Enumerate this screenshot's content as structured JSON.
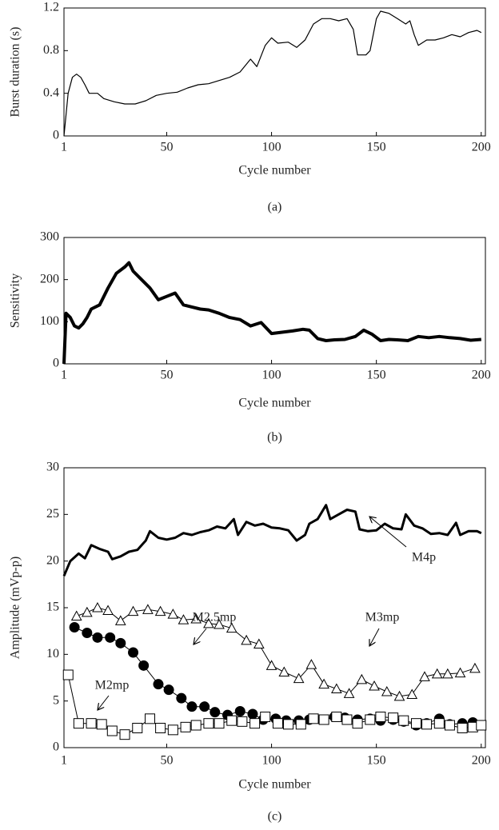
{
  "chart_data": [
    {
      "type": "line",
      "caption": "(a)",
      "xlabel": "Cycle number",
      "ylabel": "Burst duration (s)",
      "xlim": [
        1,
        202
      ],
      "ylim": [
        0,
        1.2
      ],
      "xticks": [
        1,
        50,
        100,
        150,
        200
      ],
      "yticks": [
        0,
        0.4,
        0.8,
        1.2
      ],
      "series": [
        {
          "color": "#000000",
          "line_width": 1.2,
          "marker": "none",
          "x": [
            1,
            3,
            5,
            7,
            9,
            11,
            13,
            17,
            20,
            25,
            30,
            35,
            40,
            45,
            50,
            55,
            60,
            65,
            70,
            75,
            80,
            85,
            90,
            93,
            97,
            100,
            103,
            108,
            112,
            116,
            120,
            124,
            128,
            132,
            136,
            139,
            141,
            145,
            147,
            150,
            152,
            156,
            160,
            164,
            166,
            168,
            170,
            174,
            178,
            182,
            186,
            190,
            194,
            198,
            200
          ],
          "values": [
            0,
            0.4,
            0.55,
            0.58,
            0.55,
            0.48,
            0.4,
            0.4,
            0.35,
            0.32,
            0.3,
            0.3,
            0.33,
            0.38,
            0.4,
            0.41,
            0.45,
            0.48,
            0.49,
            0.52,
            0.55,
            0.6,
            0.72,
            0.65,
            0.85,
            0.92,
            0.87,
            0.88,
            0.83,
            0.9,
            1.05,
            1.1,
            1.1,
            1.08,
            1.1,
            1.0,
            0.76,
            0.76,
            0.8,
            1.1,
            1.17,
            1.15,
            1.1,
            1.05,
            1.08,
            0.95,
            0.85,
            0.9,
            0.9,
            0.92,
            0.95,
            0.93,
            0.97,
            0.99,
            0.97
          ]
        }
      ]
    },
    {
      "type": "line",
      "caption": "(b)",
      "xlabel": "Cycle number",
      "ylabel": "Sensitivity",
      "xlim": [
        1,
        202
      ],
      "ylim": [
        0,
        300
      ],
      "xticks": [
        1,
        50,
        100,
        150,
        200
      ],
      "yticks": [
        0,
        100,
        200,
        300
      ],
      "series": [
        {
          "color": "#000000",
          "line_width": 4,
          "marker": "none",
          "x": [
            1,
            2,
            4,
            6,
            8,
            10,
            12,
            14,
            18,
            22,
            26,
            30,
            32,
            34,
            38,
            42,
            46,
            50,
            54,
            58,
            62,
            66,
            70,
            75,
            80,
            85,
            90,
            95,
            100,
            105,
            110,
            115,
            118,
            122,
            126,
            130,
            135,
            140,
            144,
            148,
            152,
            156,
            160,
            165,
            170,
            175,
            180,
            185,
            190,
            195,
            200
          ],
          "values": [
            0,
            120,
            110,
            90,
            85,
            95,
            110,
            130,
            140,
            180,
            215,
            230,
            240,
            220,
            200,
            180,
            152,
            160,
            168,
            140,
            135,
            130,
            128,
            120,
            110,
            105,
            90,
            98,
            72,
            75,
            78,
            82,
            80,
            60,
            55,
            57,
            58,
            65,
            80,
            70,
            55,
            58,
            57,
            55,
            65,
            62,
            65,
            62,
            60,
            56,
            58
          ]
        }
      ]
    },
    {
      "type": "line",
      "caption": "(c)",
      "xlabel": "Cycle number",
      "ylabel": "Amplitude (mVp-p)",
      "xlim": [
        1,
        202
      ],
      "ylim": [
        0,
        30
      ],
      "xticks": [
        1,
        50,
        100,
        150,
        200
      ],
      "yticks": [
        0,
        5,
        10,
        15,
        20,
        25,
        30
      ],
      "series": [
        {
          "name": "M4p",
          "color": "#000000",
          "line_width": 3,
          "marker": "none",
          "x": [
            1,
            4,
            8,
            11,
            14,
            18,
            22,
            24,
            28,
            32,
            36,
            40,
            42,
            46,
            50,
            54,
            58,
            62,
            66,
            70,
            74,
            78,
            82,
            84,
            88,
            92,
            96,
            100,
            104,
            108,
            112,
            116,
            118,
            122,
            126,
            128,
            132,
            136,
            140,
            142,
            146,
            150,
            154,
            158,
            162,
            164,
            168,
            172,
            176,
            180,
            184,
            188,
            190,
            194,
            198,
            200
          ],
          "values": [
            18.4,
            20,
            20.8,
            20.3,
            21.7,
            21.3,
            21,
            20.2,
            20.5,
            21,
            21.2,
            22.2,
            23.2,
            22.5,
            22.3,
            22.5,
            23,
            22.8,
            23.1,
            23.3,
            23.7,
            23.5,
            24.5,
            22.8,
            24.2,
            23.8,
            24,
            23.6,
            23.5,
            23.3,
            22.2,
            22.8,
            24,
            24.5,
            26,
            24.5,
            25,
            25.5,
            25.3,
            23.4,
            23.2,
            23.3,
            24,
            23.5,
            23.4,
            25,
            23.8,
            23.5,
            22.9,
            23,
            22.8,
            24.1,
            22.8,
            23.2,
            23.2,
            23
          ]
        },
        {
          "name": "M3mp",
          "color": "#000000",
          "line_width": 1,
          "marker": "open-triangle",
          "x": [
            7,
            12,
            17,
            22,
            28,
            34,
            41,
            47,
            53,
            58,
            64,
            70,
            75,
            81,
            88,
            94,
            100,
            106,
            113,
            119,
            125,
            131,
            137,
            143,
            149,
            155,
            161,
            167,
            173,
            179,
            184,
            190,
            197
          ],
          "values": [
            14.1,
            14.5,
            15,
            14.7,
            13.6,
            14.6,
            14.8,
            14.6,
            14.3,
            13.7,
            13.8,
            13.3,
            13.2,
            12.8,
            11.5,
            11.1,
            8.8,
            8.1,
            7.4,
            8.9,
            6.8,
            6.3,
            5.8,
            7.3,
            6.6,
            6,
            5.5,
            5.7,
            7.6,
            7.9,
            7.9,
            8,
            8.5
          ]
        },
        {
          "name": "M2.5mp",
          "color": "#000000",
          "line_width": 1,
          "marker": "filled-circle",
          "x": [
            6,
            12,
            17,
            23,
            28,
            34,
            39,
            46,
            51,
            57,
            62,
            68,
            73,
            79,
            85,
            91,
            96,
            102,
            107,
            113,
            118,
            124,
            130,
            135,
            141,
            147,
            152,
            158,
            163,
            169,
            174,
            180,
            185,
            191,
            196
          ],
          "values": [
            12.9,
            12.3,
            11.8,
            11.8,
            11.2,
            10.2,
            8.8,
            6.8,
            6.2,
            5.3,
            4.4,
            4.4,
            3.8,
            3.5,
            3.9,
            3.6,
            3,
            3.1,
            2.9,
            2.9,
            3,
            3,
            3.3,
            3.2,
            3,
            3.1,
            2.9,
            3,
            2.8,
            2.4,
            2.6,
            3.1,
            2.5,
            2.6,
            2.7
          ]
        },
        {
          "name": "M2mp",
          "color": "#000000",
          "line_width": 1,
          "marker": "open-square",
          "x": [
            3,
            8,
            14,
            19,
            24,
            30,
            36,
            42,
            47,
            53,
            59,
            64,
            70,
            75,
            81,
            86,
            92,
            97,
            103,
            108,
            114,
            120,
            125,
            131,
            136,
            141,
            147,
            152,
            158,
            163,
            169,
            174,
            180,
            185,
            191,
            196,
            200
          ],
          "values": [
            7.8,
            2.6,
            2.6,
            2.5,
            1.8,
            1.4,
            2.1,
            3.1,
            2.1,
            1.9,
            2.2,
            2.4,
            2.6,
            2.6,
            2.9,
            2.8,
            2.6,
            3.3,
            2.6,
            2.5,
            2.5,
            3.1,
            3,
            3.3,
            3,
            2.6,
            3,
            3.3,
            3.2,
            2.9,
            2.6,
            2.5,
            2.6,
            2.4,
            2.1,
            2.2,
            2.4
          ]
        }
      ]
    }
  ]
}
